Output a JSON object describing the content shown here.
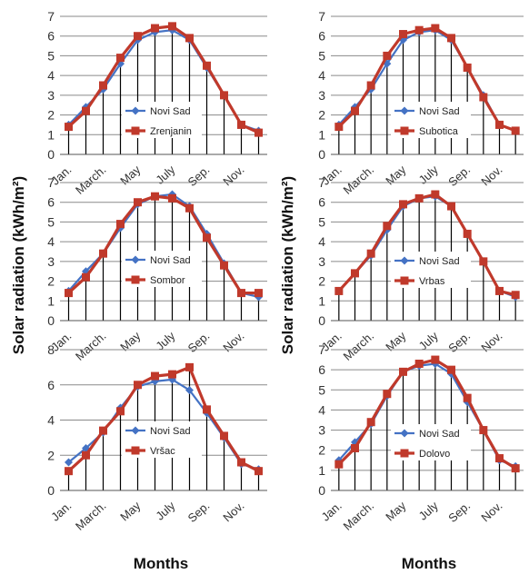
{
  "figure": {
    "ylabel": "Solar radiation (kWh/m²)",
    "xlabel": "Months",
    "x_tick_labels": [
      "Jan.",
      "March.",
      "May",
      "July",
      "Sep.",
      "Nov."
    ],
    "colors": {
      "reference": "#4472C4",
      "station": "#C0392B",
      "grid": "#000000"
    }
  },
  "chart_data": [
    {
      "type": "line",
      "categories": [
        1,
        2,
        3,
        4,
        5,
        6,
        7,
        8,
        9,
        10,
        11,
        12
      ],
      "ylim": [
        0,
        7
      ],
      "yticks": [
        0,
        1,
        2,
        3,
        4,
        5,
        6,
        7
      ],
      "legend": "center-left",
      "series": [
        {
          "name": "Novi Sad",
          "values": [
            1.5,
            2.4,
            3.3,
            4.6,
            5.8,
            6.2,
            6.3,
            5.8,
            4.4,
            3.0,
            1.5,
            1.2
          ]
        },
        {
          "name": "Zrenjanin",
          "values": [
            1.4,
            2.2,
            3.5,
            4.9,
            6.0,
            6.4,
            6.5,
            5.9,
            4.5,
            3.0,
            1.5,
            1.1
          ]
        }
      ]
    },
    {
      "type": "line",
      "categories": [
        1,
        2,
        3,
        4,
        5,
        6,
        7,
        8,
        9,
        10,
        11,
        12
      ],
      "ylim": [
        0,
        7
      ],
      "yticks": [
        0,
        1,
        2,
        3,
        4,
        5,
        6,
        7
      ],
      "legend": "center-right",
      "series": [
        {
          "name": "Novi Sad",
          "values": [
            1.5,
            2.4,
            3.3,
            4.6,
            5.8,
            6.2,
            6.3,
            5.8,
            4.4,
            3.0,
            1.5,
            1.2
          ]
        },
        {
          "name": "Subotica",
          "values": [
            1.4,
            2.2,
            3.5,
            5.0,
            6.1,
            6.3,
            6.4,
            5.9,
            4.4,
            2.9,
            1.5,
            1.2
          ]
        }
      ]
    },
    {
      "type": "line",
      "categories": [
        1,
        2,
        3,
        4,
        5,
        6,
        7,
        8,
        9,
        10,
        11,
        12
      ],
      "ylim": [
        0,
        7
      ],
      "yticks": [
        0,
        1,
        2,
        3,
        4,
        5,
        6,
        7
      ],
      "legend": "center",
      "series": [
        {
          "name": "Novi Sad",
          "values": [
            1.5,
            2.5,
            3.4,
            4.7,
            5.9,
            6.3,
            6.4,
            5.8,
            4.4,
            2.9,
            1.4,
            1.2
          ]
        },
        {
          "name": "Sombor",
          "values": [
            1.4,
            2.2,
            3.4,
            4.9,
            6.0,
            6.3,
            6.2,
            5.7,
            4.2,
            2.8,
            1.4,
            1.4
          ]
        }
      ]
    },
    {
      "type": "line",
      "categories": [
        1,
        2,
        3,
        4,
        5,
        6,
        7,
        8,
        9,
        10,
        11,
        12
      ],
      "ylim": [
        0,
        7
      ],
      "yticks": [
        0,
        1,
        2,
        3,
        4,
        5,
        6,
        7
      ],
      "legend": "center-right",
      "series": [
        {
          "name": "Novi Sad",
          "values": [
            1.5,
            2.4,
            3.3,
            4.6,
            5.8,
            6.2,
            6.3,
            5.8,
            4.4,
            3.0,
            1.5,
            1.2
          ]
        },
        {
          "name": "Vrbas",
          "values": [
            1.5,
            2.4,
            3.4,
            4.8,
            5.9,
            6.2,
            6.4,
            5.8,
            4.4,
            3.0,
            1.5,
            1.3
          ]
        }
      ]
    },
    {
      "type": "line",
      "categories": [
        1,
        2,
        3,
        4,
        5,
        6,
        7,
        8,
        9,
        10,
        11,
        12
      ],
      "ylim": [
        0,
        8
      ],
      "yticks": [
        0,
        2,
        4,
        6,
        8
      ],
      "legend": "center",
      "series": [
        {
          "name": "Novi Sad",
          "values": [
            1.6,
            2.4,
            3.3,
            4.7,
            5.9,
            6.2,
            6.3,
            5.7,
            4.4,
            3.0,
            1.5,
            1.2
          ]
        },
        {
          "name": "Vršac",
          "values": [
            1.1,
            2.0,
            3.4,
            4.5,
            6.0,
            6.5,
            6.6,
            7.0,
            4.6,
            3.1,
            1.6,
            1.1
          ]
        }
      ]
    },
    {
      "type": "line",
      "categories": [
        1,
        2,
        3,
        4,
        5,
        6,
        7,
        8,
        9,
        10,
        11,
        12
      ],
      "ylim": [
        0,
        7
      ],
      "yticks": [
        0,
        1,
        2,
        3,
        4,
        5,
        6,
        7
      ],
      "legend": "bottom-center",
      "series": [
        {
          "name": "Novi Sad",
          "values": [
            1.5,
            2.4,
            3.3,
            4.7,
            5.9,
            6.2,
            6.3,
            5.8,
            4.4,
            3.0,
            1.5,
            1.2
          ]
        },
        {
          "name": "Dolovo",
          "values": [
            1.3,
            2.1,
            3.4,
            4.8,
            5.9,
            6.3,
            6.5,
            6.0,
            4.6,
            3.0,
            1.6,
            1.1
          ]
        }
      ]
    }
  ]
}
